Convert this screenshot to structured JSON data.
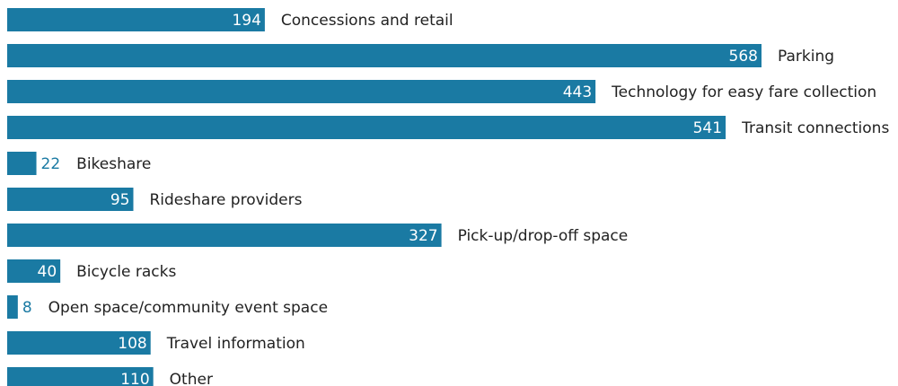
{
  "chart_data": {
    "type": "bar",
    "orientation": "horizontal",
    "color": "#1a7aa3",
    "categories": [
      "Concessions and retail",
      "Parking",
      "Technology for easy fare collection",
      "Transit connections",
      "Bikeshare",
      "Rideshare providers",
      "Pick-up/drop-off space",
      "Bicycle racks",
      "Open space/community event space",
      "Travel information",
      "Other"
    ],
    "values": [
      194,
      568,
      443,
      541,
      22,
      95,
      327,
      40,
      8,
      108,
      110
    ]
  }
}
